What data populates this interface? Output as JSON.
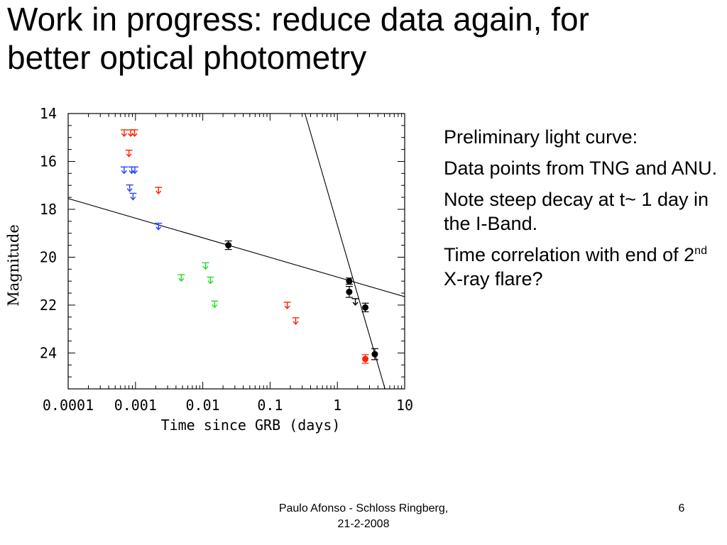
{
  "slide": {
    "title_line1": "Work in progress: reduce data again, for",
    "title_line2": "better optical photometry",
    "notes": {
      "p1": "Preliminary light curve:",
      "p2": "Data points from TNG and ANU.",
      "p3": "Note steep decay at t~ 1 day in the I-Band.",
      "p4_prefix": "Time correlation with end of 2",
      "p4_sup": "nd",
      "p4_suffix": " X-ray flare?"
    },
    "footer": {
      "credit_line1": "Paulo Afonso - Schloss Ringberg,",
      "credit_line2": "21-2-2008",
      "page_number": "6"
    }
  },
  "chart_data": {
    "type": "scatter",
    "xlabel": "Time since GRB (days)",
    "ylabel": "Magnitude",
    "x_scale": "log",
    "xlim": [
      0.0001,
      10
    ],
    "ylim": [
      14,
      25.5
    ],
    "y_inverted": true,
    "x_ticks": [
      0.0001,
      0.001,
      0.01,
      0.1,
      1,
      10
    ],
    "x_tick_labels": [
      "0.0001",
      "0.001",
      "0.01",
      "0.1",
      "1",
      "10"
    ],
    "y_ticks": [
      14,
      16,
      18,
      20,
      22,
      24
    ],
    "y_tick_labels": [
      "14",
      "16",
      "18",
      "20",
      "22",
      "24"
    ],
    "colors": {
      "red": "#ff2200",
      "blue": "#2244ff",
      "green": "#22dd22",
      "black": "#000000"
    },
    "upper_limits": [
      {
        "color": "red",
        "x": 0.00068,
        "y": 14.8
      },
      {
        "color": "red",
        "x": 0.00085,
        "y": 14.8
      },
      {
        "color": "red",
        "x": 0.00097,
        "y": 14.8
      },
      {
        "color": "red",
        "x": 0.0008,
        "y": 15.65
      },
      {
        "color": "red",
        "x": 0.0022,
        "y": 17.2
      },
      {
        "color": "red",
        "x": 0.18,
        "y": 22.0
      },
      {
        "color": "red",
        "x": 0.24,
        "y": 22.65
      },
      {
        "color": "blue",
        "x": 0.00068,
        "y": 16.35
      },
      {
        "color": "blue",
        "x": 0.00088,
        "y": 16.35
      },
      {
        "color": "blue",
        "x": 0.00098,
        "y": 16.35
      },
      {
        "color": "blue",
        "x": 0.00082,
        "y": 17.1
      },
      {
        "color": "blue",
        "x": 0.00092,
        "y": 17.45
      },
      {
        "color": "blue",
        "x": 0.0022,
        "y": 18.7
      },
      {
        "color": "green",
        "x": 0.0048,
        "y": 20.85
      },
      {
        "color": "green",
        "x": 0.011,
        "y": 20.35
      },
      {
        "color": "green",
        "x": 0.013,
        "y": 20.95
      },
      {
        "color": "green",
        "x": 0.015,
        "y": 21.95
      },
      {
        "color": "black",
        "x": 1.85,
        "y": 21.85
      }
    ],
    "detections": [
      {
        "color": "black",
        "x": 0.024,
        "y": 19.5,
        "yerr": 0.15
      },
      {
        "color": "black",
        "x": 1.5,
        "y": 21.0,
        "yerr": 0.1
      },
      {
        "color": "black",
        "x": 1.5,
        "y": 21.45,
        "yerr": 0.2
      },
      {
        "color": "black",
        "x": 2.6,
        "y": 22.1,
        "yerr": 0.15
      },
      {
        "color": "black",
        "x": 3.6,
        "y": 24.05,
        "yerr": 0.2
      },
      {
        "color": "red",
        "x": 2.6,
        "y": 24.25,
        "yerr": 0.15
      }
    ],
    "fit_lines": [
      {
        "x": [
          0.0001,
          10
        ],
        "y": [
          17.55,
          21.65
        ]
      },
      {
        "x": [
          0.33,
          5.1
        ],
        "y": [
          14.0,
          25.5
        ]
      }
    ]
  }
}
